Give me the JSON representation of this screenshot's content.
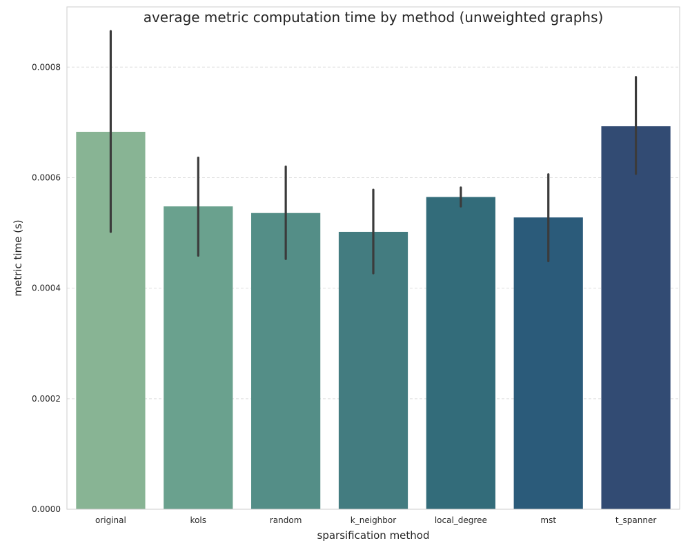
{
  "chart_data": {
    "type": "bar",
    "title": "average metric computation time by method (unweighted graphs)",
    "xlabel": "sparsification method",
    "ylabel": "metric time (s)",
    "categories": [
      "original",
      "kols",
      "random",
      "k_neighbor",
      "local_degree",
      "mst",
      "t_spanner"
    ],
    "values": [
      0.000683,
      0.000548,
      0.000536,
      0.000502,
      0.000565,
      0.000528,
      0.000693
    ],
    "error_low": [
      0.000502,
      0.000459,
      0.000453,
      0.000427,
      0.000548,
      0.000449,
      0.000607
    ],
    "error_high": [
      0.000865,
      0.000636,
      0.00062,
      0.000578,
      0.000582,
      0.000606,
      0.000782
    ],
    "ylim": [
      0,
      0.000909
    ],
    "yticks": [
      0,
      0.0002,
      0.0004,
      0.0006,
      0.0008
    ],
    "ytick_labels": [
      "0.0000",
      "0.0002",
      "0.0004",
      "0.0006",
      "0.0008"
    ],
    "colors": [
      "#88b494",
      "#6aa18e",
      "#548e87",
      "#437c80",
      "#336c7a",
      "#2b5b7a",
      "#324b73"
    ],
    "error_bar_color": "#3b3b3b",
    "grid": "y-dashed"
  }
}
